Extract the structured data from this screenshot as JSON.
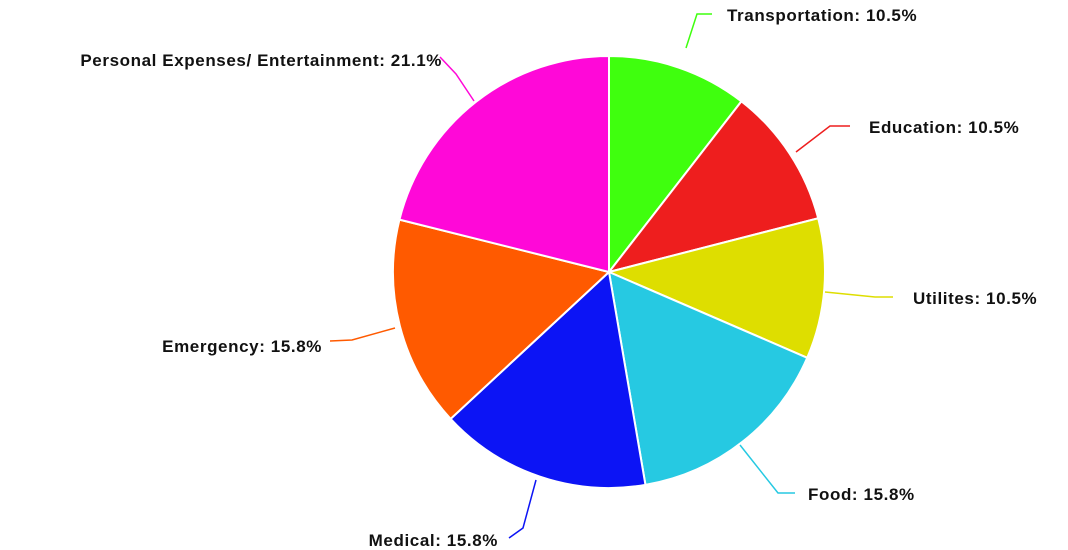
{
  "chart_data": {
    "type": "pie",
    "title": "",
    "slices": [
      {
        "label": "Transportation",
        "value": 10.5,
        "label_text": "Transportation: 10.5%",
        "color": "#3fff0e"
      },
      {
        "label": "Education",
        "value": 10.5,
        "label_text": "Education: 10.5%",
        "color": "#ee1e1e"
      },
      {
        "label": "Utilites",
        "value": 10.5,
        "label_text": "Utilites: 10.5%",
        "color": "#dede00"
      },
      {
        "label": "Food",
        "value": 15.8,
        "label_text": "Food: 15.8%",
        "color": "#26c9e2"
      },
      {
        "label": "Medical",
        "value": 15.8,
        "label_text": "Medical: 15.8%",
        "color": "#0c14f5"
      },
      {
        "label": "Emergency",
        "value": 15.8,
        "label_text": "Emergency: 15.8%",
        "color": "#ff5a00"
      },
      {
        "label": "Personal Expenses/ Entertainment",
        "value": 21.1,
        "label_text": "Personal Expenses/ Entertainment: 21.1%",
        "color": "#ff08d8"
      }
    ],
    "start_angle": "12 o'clock",
    "direction": "clockwise",
    "legend": "none"
  }
}
